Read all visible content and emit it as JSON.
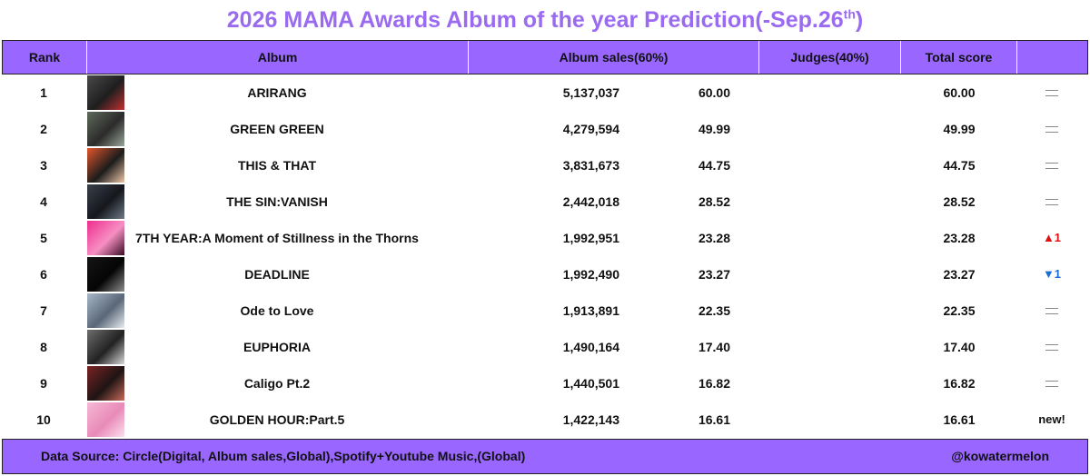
{
  "title": {
    "main": "2026 MAMA Awards Album of the year Prediction(-Sep.26",
    "sup": "th",
    "close": ")"
  },
  "headers": {
    "rank": "Rank",
    "album": "Album",
    "album_sales": "Album sales(60%)",
    "judges": "Judges(40%)",
    "total": "Total score",
    "change": ""
  },
  "rows": [
    {
      "rank": "1",
      "album": "ARIRANG",
      "sales": "5,137,037",
      "sales_score": "60.00",
      "judges": "",
      "total": "60.00",
      "change_type": "same",
      "change": "",
      "cover_colors": [
        "#4a4a4a",
        "#1e1e1e",
        "#c23030"
      ]
    },
    {
      "rank": "2",
      "album": "GREEN GREEN",
      "sales": "4,279,594",
      "sales_score": "49.99",
      "judges": "",
      "total": "49.99",
      "change_type": "same",
      "change": "",
      "cover_colors": [
        "#5f6a5c",
        "#2b2b2b",
        "#9aa69a"
      ]
    },
    {
      "rank": "3",
      "album": "THIS & THAT",
      "sales": "3,831,673",
      "sales_score": "44.75",
      "judges": "",
      "total": "44.75",
      "change_type": "same",
      "change": "",
      "cover_colors": [
        "#e2552b",
        "#1c1c1c",
        "#f0c6a8"
      ]
    },
    {
      "rank": "4",
      "album": "THE SIN:VANISH",
      "sales": "2,442,018",
      "sales_score": "28.52",
      "judges": "",
      "total": "28.52",
      "change_type": "same",
      "change": "",
      "cover_colors": [
        "#3a3f4a",
        "#15171c",
        "#707a88"
      ]
    },
    {
      "rank": "5",
      "album": "7TH YEAR:A Moment of Stillness in the Thorns",
      "sales": "1,992,951",
      "sales_score": "23.28",
      "judges": "",
      "total": "23.28",
      "change_type": "up",
      "change": "▲1",
      "cover_colors": [
        "#ee2d8f",
        "#f68fc3",
        "#3a0d24"
      ]
    },
    {
      "rank": "6",
      "album": "DEADLINE",
      "sales": "1,992,490",
      "sales_score": "23.27",
      "judges": "",
      "total": "23.27",
      "change_type": "down",
      "change": "▼1",
      "cover_colors": [
        "#151515",
        "#050505",
        "#8d8d8d"
      ]
    },
    {
      "rank": "7",
      "album": "Ode to Love",
      "sales": "1,913,891",
      "sales_score": "22.35",
      "judges": "",
      "total": "22.35",
      "change_type": "same",
      "change": "",
      "cover_colors": [
        "#a8b8c8",
        "#5a6778",
        "#e8edf2"
      ]
    },
    {
      "rank": "8",
      "album": "EUPHORIA",
      "sales": "1,490,164",
      "sales_score": "17.40",
      "judges": "",
      "total": "17.40",
      "change_type": "same",
      "change": "",
      "cover_colors": [
        "#6e6e6e",
        "#222222",
        "#d8d8d8"
      ]
    },
    {
      "rank": "9",
      "album": "Caligo Pt.2",
      "sales": "1,440,501",
      "sales_score": "16.82",
      "judges": "",
      "total": "16.82",
      "change_type": "same",
      "change": "",
      "cover_colors": [
        "#7a2424",
        "#1f1414",
        "#c96a5a"
      ]
    },
    {
      "rank": "10",
      "album": "GOLDEN HOUR:Part.5",
      "sales": "1,422,143",
      "sales_score": "16.61",
      "judges": "",
      "total": "16.61",
      "change_type": "new",
      "change": "new!",
      "cover_colors": [
        "#f6b8d4",
        "#e88ab8",
        "#fbe0ee"
      ]
    }
  ],
  "footer": {
    "source": "Data Source: Circle(Digital, Album sales,Global),Spotify+Youtube Music,(Global)",
    "handle": "@kowatermelon"
  },
  "colors": {
    "title": "#9a6bf0",
    "header_bg": "#9966ff",
    "up": "#dd1111",
    "down": "#1b6fd1"
  }
}
